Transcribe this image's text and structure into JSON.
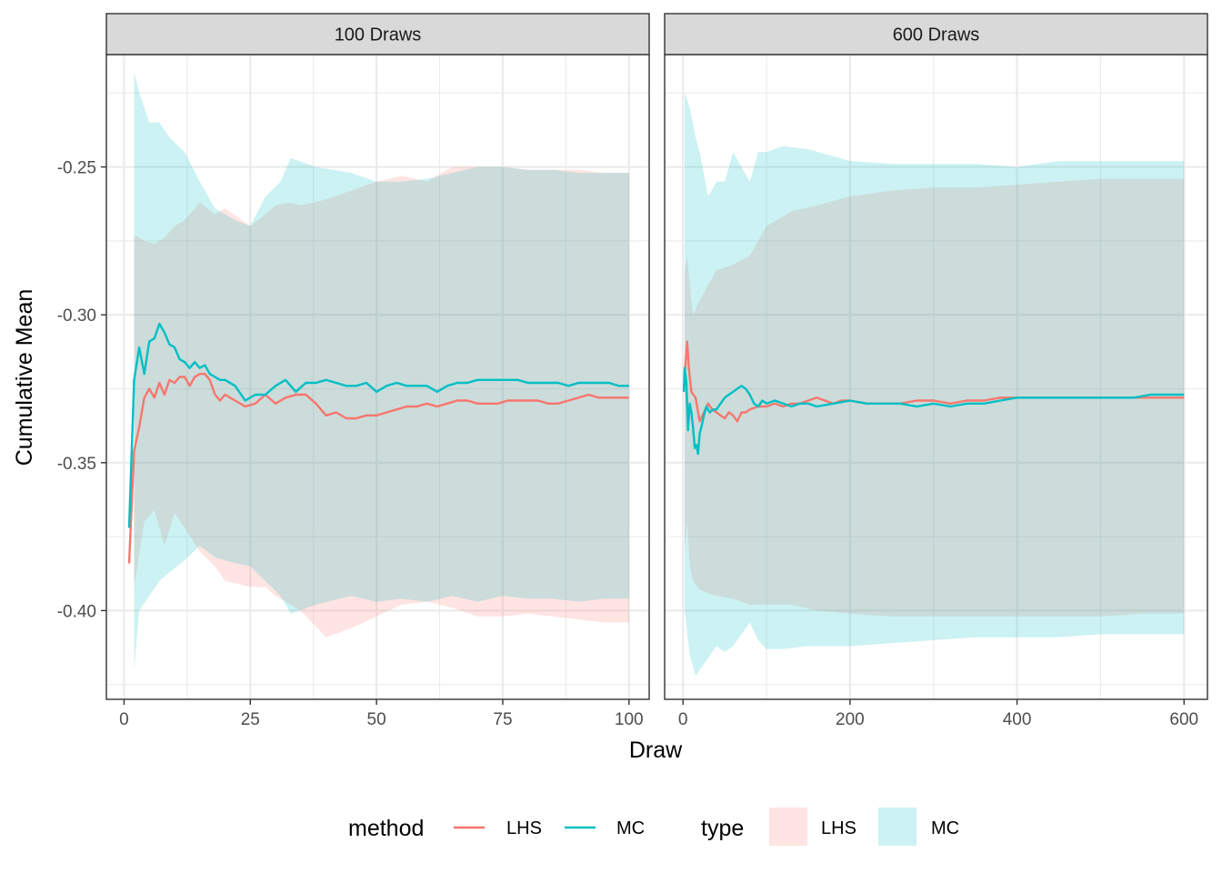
{
  "chart_data": {
    "type": "line",
    "ylabel": "Cumulative Mean",
    "xlabel": "Draw",
    "ylim": [
      -0.43,
      -0.212
    ],
    "yticks": [
      -0.4,
      -0.35,
      -0.3,
      -0.25
    ],
    "ytick_labels": [
      "-0.40",
      "-0.35",
      "-0.30",
      "-0.25"
    ],
    "grid": true,
    "legend_position": "bottom",
    "colors": {
      "LHS": "#F8766D",
      "MC": "#00BFC4",
      "strip_bg": "#d9d9d9",
      "grid": "#ebebeb"
    },
    "legends": [
      {
        "title": "method",
        "kind": "line",
        "items": [
          "LHS",
          "MC"
        ]
      },
      {
        "title": "type",
        "kind": "fill",
        "items": [
          "LHS",
          "MC"
        ]
      }
    ],
    "panels": [
      {
        "strip": "100 Draws",
        "xlim": [
          -3.5,
          104
        ],
        "xticks": [
          0,
          25,
          50,
          75,
          100
        ],
        "xtick_labels": [
          "0",
          "25",
          "50",
          "75",
          "100"
        ],
        "ribbons": [
          {
            "type": "LHS",
            "x": [
              2,
              4,
              6,
              8,
              10,
              12,
              15,
              18,
              20,
              25,
              28,
              30,
              33,
              35,
              40,
              45,
              50,
              55,
              60,
              65,
              70,
              75,
              80,
              85,
              90,
              95,
              100
            ],
            "lower": [
              -0.392,
              -0.37,
              -0.366,
              -0.378,
              -0.367,
              -0.372,
              -0.38,
              -0.385,
              -0.39,
              -0.392,
              -0.392,
              -0.395,
              -0.398,
              -0.4,
              -0.409,
              -0.406,
              -0.402,
              -0.398,
              -0.397,
              -0.399,
              -0.402,
              -0.402,
              -0.401,
              -0.402,
              -0.403,
              -0.404,
              -0.404
            ],
            "upper": [
              -0.273,
              -0.275,
              -0.276,
              -0.274,
              -0.27,
              -0.268,
              -0.262,
              -0.266,
              -0.264,
              -0.27,
              -0.266,
              -0.263,
              -0.262,
              -0.263,
              -0.261,
              -0.258,
              -0.255,
              -0.253,
              -0.255,
              -0.25,
              -0.25,
              -0.25,
              -0.251,
              -0.251,
              -0.251,
              -0.252,
              -0.252
            ]
          },
          {
            "type": "MC",
            "x": [
              2,
              3,
              5,
              7,
              9,
              12,
              15,
              18,
              22,
              25,
              28,
              31,
              33,
              38,
              45,
              50,
              55,
              60,
              65,
              70,
              75,
              80,
              85,
              90,
              95,
              100
            ],
            "lower": [
              -0.42,
              -0.4,
              -0.395,
              -0.39,
              -0.387,
              -0.383,
              -0.378,
              -0.382,
              -0.384,
              -0.385,
              -0.39,
              -0.395,
              -0.401,
              -0.398,
              -0.395,
              -0.397,
              -0.396,
              -0.397,
              -0.395,
              -0.397,
              -0.395,
              -0.396,
              -0.396,
              -0.397,
              -0.396,
              -0.396
            ],
            "upper": [
              -0.218,
              -0.225,
              -0.235,
              -0.235,
              -0.24,
              -0.245,
              -0.255,
              -0.264,
              -0.268,
              -0.27,
              -0.26,
              -0.255,
              -0.247,
              -0.25,
              -0.252,
              -0.255,
              -0.255,
              -0.254,
              -0.252,
              -0.25,
              -0.25,
              -0.251,
              -0.251,
              -0.252,
              -0.252,
              -0.252
            ]
          }
        ],
        "series": [
          {
            "name": "LHS",
            "x": [
              1,
              2,
              3,
              4,
              5,
              6,
              7,
              8,
              9,
              10,
              11,
              12,
              13,
              14,
              15,
              16,
              17,
              18,
              19,
              20,
              22,
              24,
              26,
              28,
              30,
              32,
              34,
              36,
              38,
              40,
              42,
              44,
              46,
              48,
              50,
              52,
              54,
              56,
              58,
              60,
              62,
              64,
              66,
              68,
              70,
              72,
              74,
              76,
              78,
              80,
              82,
              84,
              86,
              88,
              90,
              92,
              94,
              96,
              98,
              100
            ],
            "y": [
              -0.384,
              -0.346,
              -0.338,
              -0.328,
              -0.325,
              -0.328,
              -0.323,
              -0.327,
              -0.322,
              -0.323,
              -0.321,
              -0.321,
              -0.324,
              -0.321,
              -0.32,
              -0.32,
              -0.322,
              -0.327,
              -0.329,
              -0.327,
              -0.329,
              -0.331,
              -0.33,
              -0.327,
              -0.33,
              -0.328,
              -0.327,
              -0.327,
              -0.33,
              -0.334,
              -0.333,
              -0.335,
              -0.335,
              -0.334,
              -0.334,
              -0.333,
              -0.332,
              -0.331,
              -0.331,
              -0.33,
              -0.331,
              -0.33,
              -0.329,
              -0.329,
              -0.33,
              -0.33,
              -0.33,
              -0.329,
              -0.329,
              -0.329,
              -0.329,
              -0.33,
              -0.33,
              -0.329,
              -0.328,
              -0.327,
              -0.328,
              -0.328,
              -0.328,
              -0.328
            ]
          },
          {
            "name": "MC",
            "x": [
              1,
              2,
              3,
              4,
              5,
              6,
              7,
              8,
              9,
              10,
              11,
              12,
              13,
              14,
              15,
              16,
              17,
              18,
              19,
              20,
              22,
              24,
              26,
              28,
              30,
              32,
              34,
              36,
              38,
              40,
              42,
              44,
              46,
              48,
              50,
              52,
              54,
              56,
              58,
              60,
              62,
              64,
              66,
              68,
              70,
              72,
              74,
              76,
              78,
              80,
              82,
              84,
              86,
              88,
              90,
              92,
              94,
              96,
              98,
              100
            ],
            "y": [
              -0.372,
              -0.322,
              -0.311,
              -0.32,
              -0.309,
              -0.308,
              -0.303,
              -0.306,
              -0.31,
              -0.311,
              -0.315,
              -0.316,
              -0.318,
              -0.316,
              -0.318,
              -0.317,
              -0.32,
              -0.321,
              -0.322,
              -0.322,
              -0.324,
              -0.329,
              -0.327,
              -0.327,
              -0.324,
              -0.322,
              -0.326,
              -0.323,
              -0.323,
              -0.322,
              -0.323,
              -0.324,
              -0.324,
              -0.323,
              -0.326,
              -0.324,
              -0.323,
              -0.324,
              -0.324,
              -0.324,
              -0.326,
              -0.324,
              -0.323,
              -0.323,
              -0.322,
              -0.322,
              -0.322,
              -0.322,
              -0.322,
              -0.323,
              -0.323,
              -0.323,
              -0.323,
              -0.324,
              -0.323,
              -0.323,
              -0.323,
              -0.323,
              -0.324,
              -0.324
            ]
          }
        ]
      },
      {
        "strip": "600 Draws",
        "xlim": [
          -22,
          628
        ],
        "xticks": [
          0,
          200,
          400,
          600
        ],
        "xtick_labels": [
          "0",
          "200",
          "400",
          "600"
        ],
        "ribbons": [
          {
            "type": "LHS",
            "x": [
              2,
              5,
              8,
              12,
              20,
              40,
              60,
              80,
              100,
              130,
              160,
              200,
              250,
              300,
              350,
              400,
              450,
              500,
              550,
              600
            ],
            "lower": [
              -0.38,
              -0.37,
              -0.385,
              -0.39,
              -0.393,
              -0.395,
              -0.396,
              -0.398,
              -0.398,
              -0.398,
              -0.4,
              -0.401,
              -0.402,
              -0.402,
              -0.402,
              -0.402,
              -0.402,
              -0.402,
              -0.401,
              -0.401
            ],
            "upper": [
              -0.285,
              -0.28,
              -0.29,
              -0.3,
              -0.295,
              -0.285,
              -0.283,
              -0.28,
              -0.27,
              -0.265,
              -0.263,
              -0.26,
              -0.258,
              -0.257,
              -0.257,
              -0.256,
              -0.255,
              -0.254,
              -0.254,
              -0.254
            ]
          },
          {
            "type": "MC",
            "x": [
              2,
              8,
              15,
              20,
              30,
              40,
              50,
              60,
              70,
              80,
              90,
              100,
              120,
              150,
              200,
              250,
              300,
              350,
              400,
              450,
              500,
              550,
              600
            ],
            "lower": [
              -0.4,
              -0.415,
              -0.422,
              -0.42,
              -0.416,
              -0.412,
              -0.414,
              -0.412,
              -0.408,
              -0.404,
              -0.41,
              -0.413,
              -0.413,
              -0.412,
              -0.412,
              -0.411,
              -0.41,
              -0.409,
              -0.409,
              -0.409,
              -0.408,
              -0.408,
              -0.408
            ],
            "upper": [
              -0.225,
              -0.23,
              -0.24,
              -0.245,
              -0.26,
              -0.255,
              -0.255,
              -0.245,
              -0.25,
              -0.255,
              -0.245,
              -0.245,
              -0.243,
              -0.244,
              -0.248,
              -0.249,
              -0.249,
              -0.249,
              -0.25,
              -0.248,
              -0.248,
              -0.248,
              -0.248
            ]
          }
        ],
        "series": [
          {
            "name": "LHS",
            "x": [
              1,
              3,
              5,
              7,
              10,
              15,
              20,
              25,
              30,
              35,
              40,
              45,
              50,
              55,
              60,
              65,
              70,
              75,
              80,
              90,
              100,
              110,
              120,
              130,
              140,
              150,
              160,
              170,
              180,
              190,
              200,
              220,
              240,
              260,
              280,
              300,
              320,
              340,
              360,
              380,
              400,
              420,
              440,
              460,
              480,
              500,
              520,
              540,
              560,
              580,
              600
            ],
            "y": [
              -0.326,
              -0.316,
              -0.309,
              -0.318,
              -0.326,
              -0.328,
              -0.336,
              -0.333,
              -0.33,
              -0.332,
              -0.333,
              -0.334,
              -0.335,
              -0.333,
              -0.334,
              -0.336,
              -0.333,
              -0.333,
              -0.332,
              -0.331,
              -0.331,
              -0.33,
              -0.331,
              -0.33,
              -0.33,
              -0.329,
              -0.328,
              -0.329,
              -0.33,
              -0.329,
              -0.329,
              -0.33,
              -0.33,
              -0.33,
              -0.329,
              -0.329,
              -0.33,
              -0.329,
              -0.329,
              -0.328,
              -0.328,
              -0.328,
              -0.328,
              -0.328,
              -0.328,
              -0.328,
              -0.328,
              -0.328,
              -0.328,
              -0.328,
              -0.328
            ]
          },
          {
            "name": "MC",
            "x": [
              1,
              2,
              4,
              6,
              8,
              10,
              12,
              14,
              16,
              18,
              20,
              22,
              25,
              28,
              32,
              36,
              40,
              45,
              50,
              55,
              60,
              65,
              70,
              75,
              80,
              85,
              90,
              95,
              100,
              110,
              120,
              130,
              140,
              150,
              160,
              180,
              200,
              220,
              240,
              260,
              280,
              300,
              320,
              340,
              360,
              380,
              400,
              420,
              440,
              460,
              480,
              500,
              520,
              540,
              560,
              580,
              600
            ],
            "y": [
              -0.326,
              -0.318,
              -0.323,
              -0.339,
              -0.33,
              -0.333,
              -0.338,
              -0.345,
              -0.344,
              -0.347,
              -0.34,
              -0.338,
              -0.334,
              -0.331,
              -0.333,
              -0.332,
              -0.332,
              -0.33,
              -0.328,
              -0.327,
              -0.326,
              -0.325,
              -0.324,
              -0.325,
              -0.327,
              -0.33,
              -0.331,
              -0.329,
              -0.33,
              -0.329,
              -0.33,
              -0.331,
              -0.33,
              -0.33,
              -0.331,
              -0.33,
              -0.329,
              -0.33,
              -0.33,
              -0.33,
              -0.331,
              -0.33,
              -0.331,
              -0.33,
              -0.33,
              -0.329,
              -0.328,
              -0.328,
              -0.328,
              -0.328,
              -0.328,
              -0.328,
              -0.328,
              -0.328,
              -0.327,
              -0.327,
              -0.327
            ]
          }
        ]
      }
    ]
  }
}
